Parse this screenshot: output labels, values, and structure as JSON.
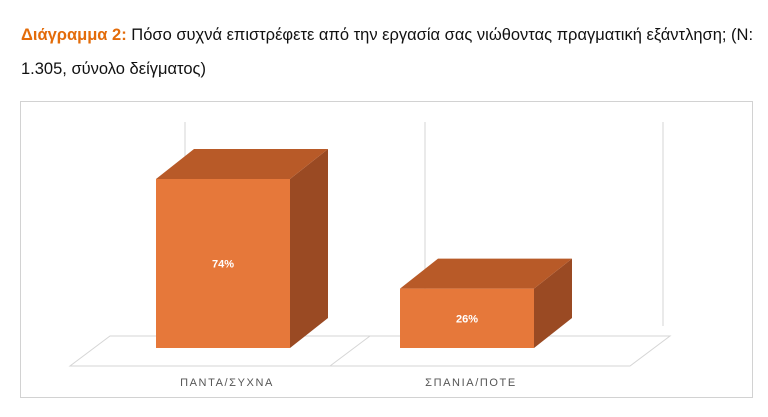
{
  "caption": {
    "label": "Διάγραμμα 2:",
    "text": "Πόσο συχνά επιστρέφετε από την εργασία σας νιώθοντας πραγματική εξάντληση; (Ν: 1.305, σύνολο δείγματος)"
  },
  "chart_data": {
    "type": "bar",
    "style": "3d-column",
    "categories": [
      "ΠΑΝΤΑ/ΣΥΧΝΑ",
      "ΣΠΑΝΙΑ/ΠΟΤΕ"
    ],
    "values": [
      74,
      26
    ],
    "data_labels": [
      "74%",
      "26%"
    ],
    "ylim": [
      0,
      80
    ],
    "grid": false,
    "legend": "none",
    "colors": {
      "front": "#e6783a",
      "side": "#9a4a23",
      "top": "#b85a28"
    }
  }
}
